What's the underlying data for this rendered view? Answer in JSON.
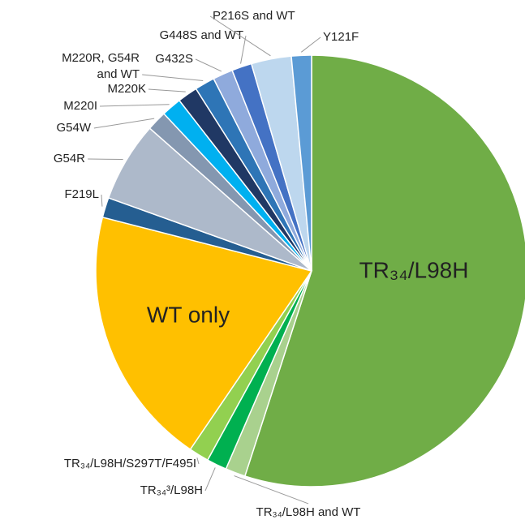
{
  "chart_data": {
    "type": "pie",
    "categories": [
      "TR₃₄/L98H",
      "TR₃₄/L98H and WT",
      "TR₃₄³/L98H",
      "TR₃₄/L98H/S297T/F495I",
      "WT only",
      "F219L",
      "G54R",
      "G54W",
      "M220I",
      "M220K",
      "M220R, G54R and WT",
      "G432S",
      "G448S and WT",
      "P216S and WT",
      "Y121F"
    ],
    "values": [
      55,
      1.5,
      1.5,
      1.5,
      19.5,
      1.5,
      6,
      1.5,
      1.5,
      1.5,
      1.5,
      1.5,
      1.5,
      3,
      1.5
    ],
    "colors": [
      "#70ad47",
      "#a9d18e",
      "#00b050",
      "#92d050",
      "#ffc000",
      "#255e91",
      "#adb9ca",
      "#8497b0",
      "#00b0f0",
      "#203864",
      "#2e75b6",
      "#8faadc",
      "#4472c4",
      "#bdd7ee",
      "#5b9bd5"
    ]
  }
}
